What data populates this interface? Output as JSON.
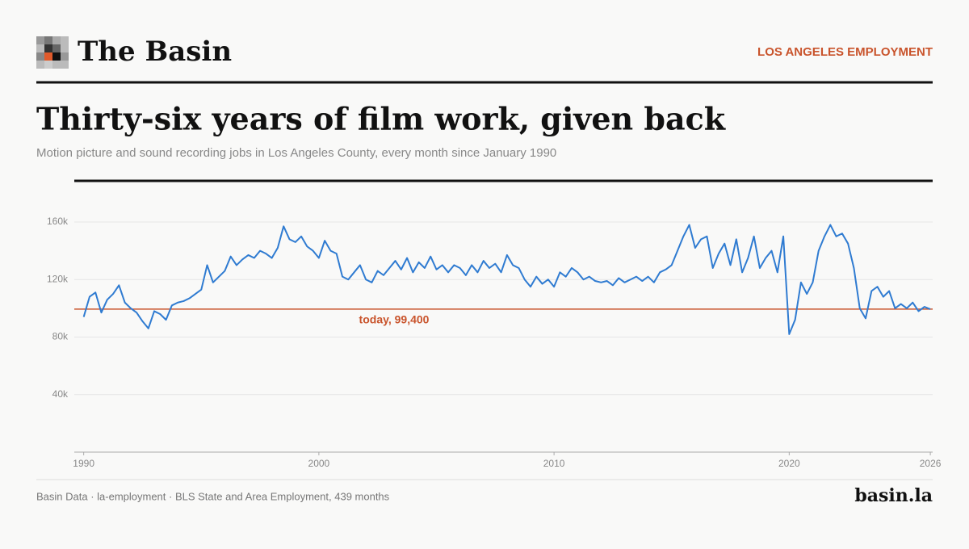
{
  "header": {
    "brand": "The Basin",
    "section": "LOS ANGELES EMPLOYMENT"
  },
  "chart_data": {
    "type": "line",
    "title": "Thirty-six years of film work, given back",
    "subtitle": "Motion picture and sound recording jobs in Los Angeles County, every month since January 1990",
    "x": [
      1990,
      1990.25,
      1990.5,
      1990.75,
      1991,
      1991.25,
      1991.5,
      1991.75,
      1992,
      1992.25,
      1992.5,
      1992.75,
      1993,
      1993.25,
      1993.5,
      1993.75,
      1994,
      1994.25,
      1994.5,
      1994.75,
      1995,
      1995.25,
      1995.5,
      1995.75,
      1996,
      1996.25,
      1996.5,
      1996.75,
      1997,
      1997.25,
      1997.5,
      1997.75,
      1998,
      1998.25,
      1998.5,
      1998.75,
      1999,
      1999.25,
      1999.5,
      1999.75,
      2000,
      2000.25,
      2000.5,
      2000.75,
      2001,
      2001.25,
      2001.5,
      2001.75,
      2002,
      2002.25,
      2002.5,
      2002.75,
      2003,
      2003.25,
      2003.5,
      2003.75,
      2004,
      2004.25,
      2004.5,
      2004.75,
      2005,
      2005.25,
      2005.5,
      2005.75,
      2006,
      2006.25,
      2006.5,
      2006.75,
      2007,
      2007.25,
      2007.5,
      2007.75,
      2008,
      2008.25,
      2008.5,
      2008.75,
      2009,
      2009.25,
      2009.5,
      2009.75,
      2010,
      2010.25,
      2010.5,
      2010.75,
      2011,
      2011.25,
      2011.5,
      2011.75,
      2012,
      2012.25,
      2012.5,
      2012.75,
      2013,
      2013.25,
      2013.5,
      2013.75,
      2014,
      2014.25,
      2014.5,
      2014.75,
      2015,
      2015.25,
      2015.5,
      2015.75,
      2016,
      2016.25,
      2016.5,
      2016.75,
      2017,
      2017.25,
      2017.5,
      2017.75,
      2018,
      2018.25,
      2018.5,
      2018.75,
      2019,
      2019.25,
      2019.5,
      2019.75,
      2020,
      2020.25,
      2020.5,
      2020.75,
      2021,
      2021.25,
      2021.5,
      2021.75,
      2022,
      2022.25,
      2022.5,
      2022.75,
      2023,
      2023.25,
      2023.5,
      2023.75,
      2024,
      2024.25,
      2024.5,
      2024.75,
      2025,
      2025.25,
      2025.5,
      2025.75,
      2026
    ],
    "values": [
      94000,
      108000,
      111000,
      97000,
      106000,
      110000,
      116000,
      104000,
      100000,
      97000,
      91000,
      86000,
      98000,
      96000,
      92000,
      102000,
      104000,
      105000,
      107000,
      110000,
      113000,
      130000,
      118000,
      122000,
      126000,
      136000,
      130000,
      134000,
      137000,
      135000,
      140000,
      138000,
      135000,
      142000,
      157000,
      148000,
      146000,
      150000,
      143000,
      140000,
      135000,
      147000,
      140000,
      138000,
      122000,
      120000,
      125000,
      130000,
      120000,
      118000,
      126000,
      123000,
      128000,
      133000,
      127000,
      135000,
      125000,
      132000,
      128000,
      136000,
      127000,
      130000,
      125000,
      130000,
      128000,
      123000,
      130000,
      125000,
      133000,
      128000,
      131000,
      125000,
      137000,
      130000,
      128000,
      120000,
      115000,
      122000,
      117000,
      120000,
      115000,
      125000,
      122000,
      128000,
      125000,
      120000,
      122000,
      119000,
      118000,
      119000,
      116000,
      121000,
      118000,
      120000,
      122000,
      119000,
      122000,
      118000,
      125000,
      127000,
      130000,
      140000,
      150000,
      158000,
      142000,
      148000,
      150000,
      128000,
      138000,
      145000,
      130000,
      148000,
      125000,
      135000,
      150000,
      128000,
      135000,
      140000,
      125000,
      150000,
      82000,
      92000,
      118000,
      110000,
      118000,
      140000,
      150000,
      158000,
      150000,
      152000,
      145000,
      128000,
      100000,
      93000,
      112000,
      115000,
      108000,
      112000,
      100000,
      103000,
      100000,
      104000,
      98000,
      101000,
      99400
    ],
    "color": "#2f7bd1",
    "reference": {
      "value": 99400,
      "label": "today, 99,400",
      "color": "#c9542c"
    },
    "xlim": [
      1989.6,
      2026.1
    ],
    "xticks": [
      1990,
      2000,
      2010,
      2020,
      2026
    ],
    "ylim": [
      0,
      167000
    ],
    "yticks": [
      {
        "value": 40000,
        "label": "40k"
      },
      {
        "value": 80000,
        "label": "80k"
      },
      {
        "value": 120000,
        "label": "120k"
      },
      {
        "value": 160000,
        "label": "160k"
      }
    ],
    "grid": true
  },
  "footer": {
    "source": "Basin Data · la-employment · BLS State and Area Employment, 439 months",
    "site": "basin.la"
  }
}
